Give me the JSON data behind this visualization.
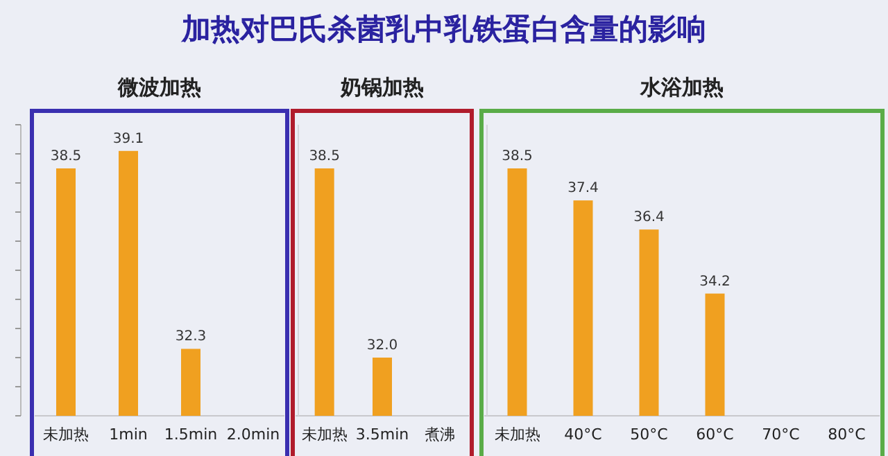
{
  "chart_data": [
    {
      "type": "other",
      "title": "加热对巴氏杀菌乳中乳铁蛋白含量的影响"
    },
    {
      "type": "bar",
      "title": "微波加热",
      "categories": [
        "未加热",
        "1min",
        "1.5min",
        "2.0min"
      ],
      "values": [
        38.5,
        39.1,
        32.3,
        null
      ],
      "value_labels": [
        "38.5",
        "39.1",
        "32.3",
        null
      ],
      "color": "#f0a020",
      "ylim": [
        30,
        40
      ],
      "yticks": [
        {
          "value": 30,
          "label": null
        },
        {
          "value": 31,
          "label": null
        },
        {
          "value": 32,
          "label": null
        },
        {
          "value": 33,
          "label": null
        },
        {
          "value": 34,
          "label": null
        },
        {
          "value": 35,
          "label": null
        },
        {
          "value": 36,
          "label": null
        },
        {
          "value": 37,
          "label": null
        },
        {
          "value": 38,
          "label": null
        },
        {
          "value": 39,
          "label": null
        },
        {
          "value": 40,
          "label": null
        }
      ]
    },
    {
      "type": "bar",
      "title": "奶锅加热",
      "categories": [
        "未加热",
        "3.5min",
        "煮沸"
      ],
      "values": [
        38.5,
        32.0,
        null
      ],
      "value_labels": [
        "38.5",
        "32.0",
        null
      ],
      "color": "#f0a020",
      "ylim": [
        30,
        40
      ]
    },
    {
      "type": "bar",
      "title": "水浴加热",
      "categories": [
        "未加热",
        "40°C",
        "50°C",
        "60°C",
        "70°C",
        "80°C"
      ],
      "values": [
        38.5,
        37.4,
        36.4,
        34.2,
        null,
        null
      ],
      "value_labels": [
        "38.5",
        "37.4",
        "36.4",
        "34.2",
        null,
        null
      ],
      "color": "#f0a020",
      "ylim": [
        30,
        40
      ]
    }
  ]
}
